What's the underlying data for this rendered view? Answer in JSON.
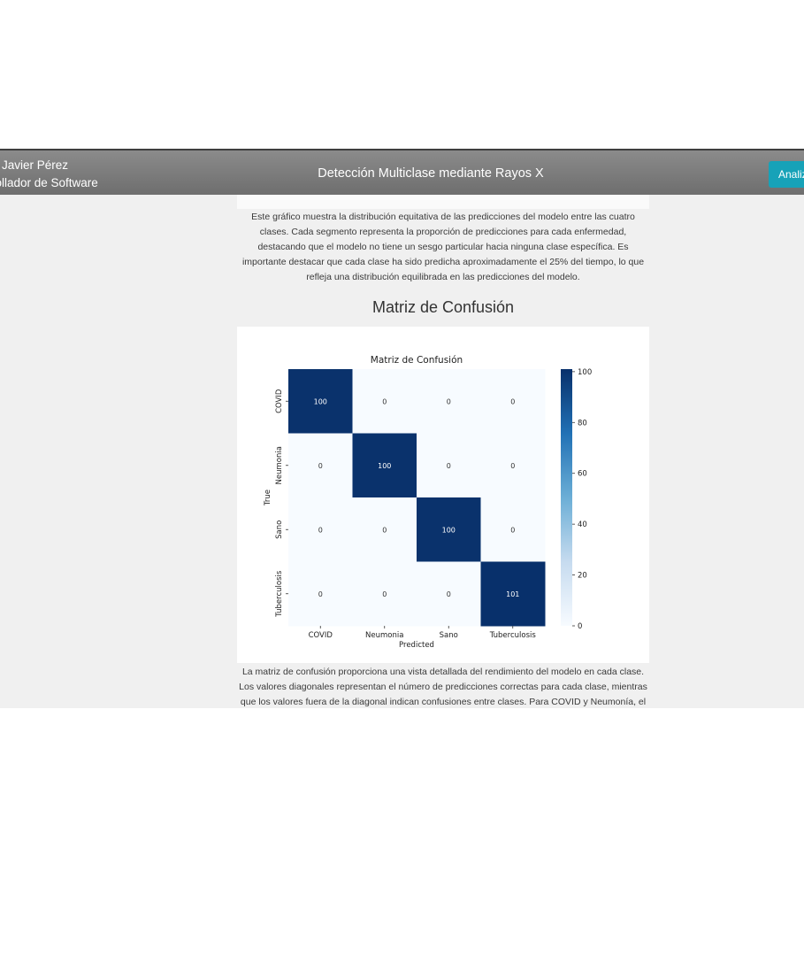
{
  "header": {
    "user_name": "Javier Pérez",
    "user_role": "rollador de Software",
    "title": "Detección Multiclase mediante Rayos X",
    "analyze_label": "Analiz"
  },
  "pie_description": "Este gráfico muestra la distribución equitativa de las predicciones del modelo entre las cuatro clases. Cada segmento representa la proporción de predicciones para cada enfermedad, destacando que el modelo no tiene un sesgo particular hacia ninguna clase específica. Es importante destacar que cada clase ha sido predicha aproximadamente el 25% del tiempo, lo que refleja una distribución equilibrada en las predicciones del modelo.",
  "confusion_section_title": "Matriz de Confusión",
  "confusion_description": "La matriz de confusión proporciona una vista detallada del rendimiento del modelo en cada clase. Los valores diagonales representan el número de predicciones correctas para cada clase, mientras que los valores fuera de la diagonal indican confusiones entre clases. Para COVID y Neumonía, el modelo tiene una alta tasa de éxito sin confusiones evidentes con otras condiciones. La clase Sano muestra una área",
  "colors": {
    "header_bg": "#7a7a7a",
    "accent_button": "#17a2b8",
    "heatmap_high": "#08306b",
    "heatmap_low": "#f7fbff"
  },
  "chart_data": {
    "type": "heatmap",
    "title": "Matriz de Confusión",
    "xlabel": "Predicted",
    "ylabel": "True",
    "x_categories": [
      "COVID",
      "Neumonia",
      "Sano",
      "Tuberculosis"
    ],
    "y_categories": [
      "COVID",
      "Neumonia",
      "Sano",
      "Tuberculosis"
    ],
    "values": [
      [
        100,
        0,
        0,
        0
      ],
      [
        0,
        100,
        0,
        0
      ],
      [
        0,
        0,
        100,
        0
      ],
      [
        0,
        0,
        0,
        101
      ]
    ],
    "colorbar": {
      "min": 0,
      "max": 101,
      "ticks": [
        0,
        20,
        40,
        60,
        80,
        100
      ]
    },
    "colormap": "Blues"
  }
}
